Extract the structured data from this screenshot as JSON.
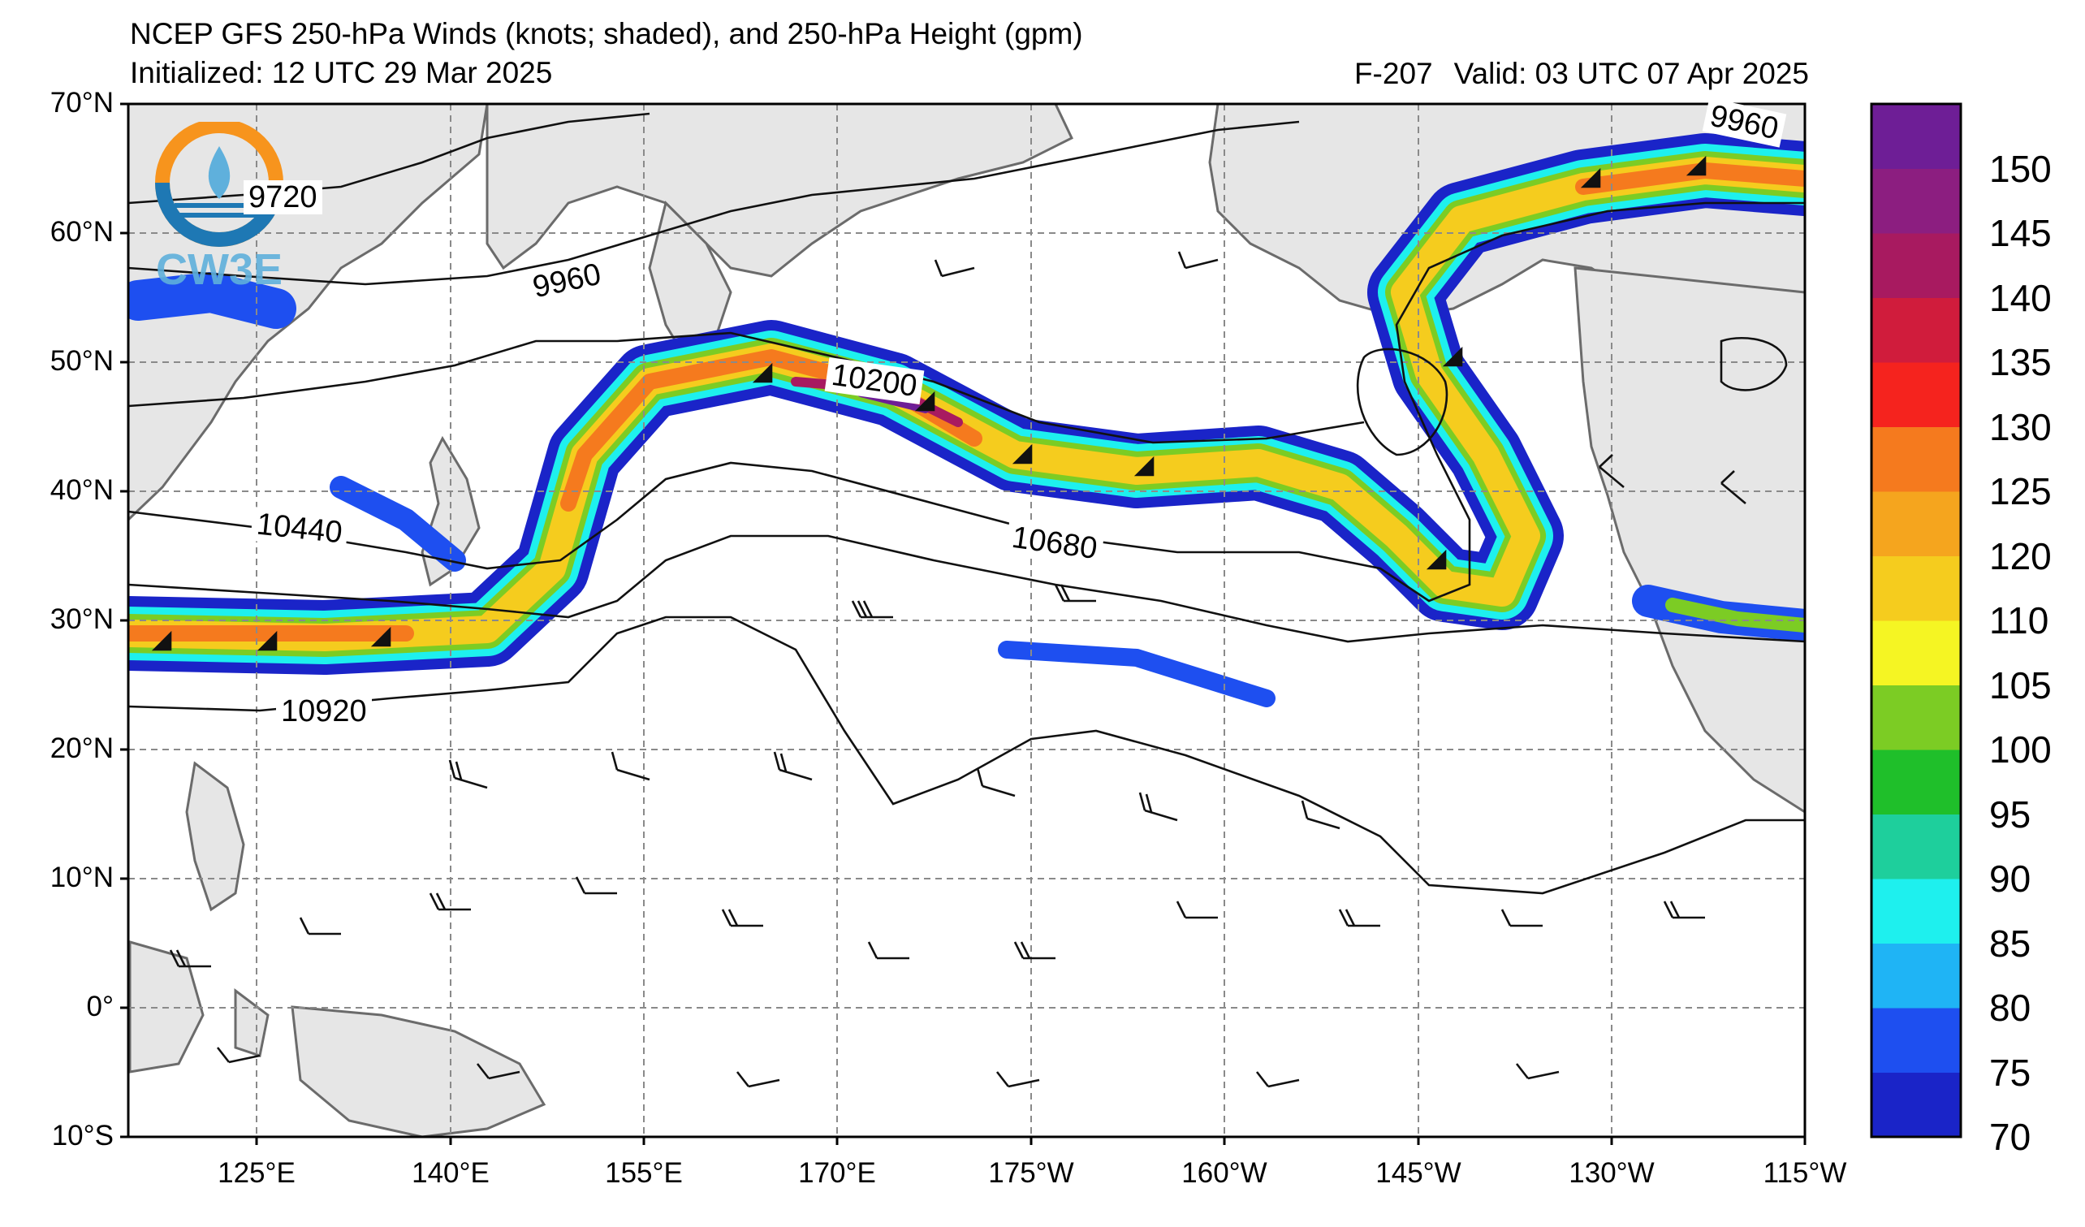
{
  "header": {
    "title": "NCEP GFS 250-hPa Winds (knots; shaded), and 250-hPa Height (gpm)",
    "initialized": "Initialized: 12 UTC 29 Mar 2025",
    "forecast_hour": "F-207",
    "valid": "Valid: 03 UTC 07 Apr 2025"
  },
  "logo": {
    "text": "CW3E",
    "colors": [
      "#f7941d",
      "#1e78b4",
      "#5fb0dc"
    ]
  },
  "axes": {
    "lat_labels": [
      "70°N",
      "60°N",
      "50°N",
      "40°N",
      "30°N",
      "20°N",
      "10°N",
      "0°",
      "10°S"
    ],
    "lon_labels": [
      "125°E",
      "140°E",
      "155°E",
      "170°E",
      "175°W",
      "160°W",
      "145°W",
      "130°W",
      "115°W"
    ],
    "lat_range": [
      -10,
      70
    ],
    "lon_range_east": [
      115,
      245
    ],
    "grid": "dashed"
  },
  "contours": {
    "levels": [
      "9720",
      "9960",
      "10200",
      "10440",
      "10680",
      "10920"
    ],
    "label_9960_ne": "9960"
  },
  "colorbar": {
    "ticks": [
      "70",
      "75",
      "80",
      "85",
      "90",
      "95",
      "100",
      "105",
      "110",
      "120",
      "125",
      "130",
      "135",
      "140",
      "145",
      "150"
    ],
    "colors": [
      "#1a24c8",
      "#1e4ff0",
      "#1fb4f5",
      "#1ef0ee",
      "#1ecf9c",
      "#1fbf2a",
      "#7ccc24",
      "#f5f523",
      "#f5cc1e",
      "#f5a51e",
      "#f57a1e",
      "#f5231e",
      "#d01c3c",
      "#a81a60",
      "#8c1e80",
      "#6e1e96"
    ]
  },
  "map_colors": {
    "land": "#e6e6e6",
    "coast": "#6b6b6b",
    "grid": "#8a8a8a",
    "ocean": "#ffffff"
  }
}
